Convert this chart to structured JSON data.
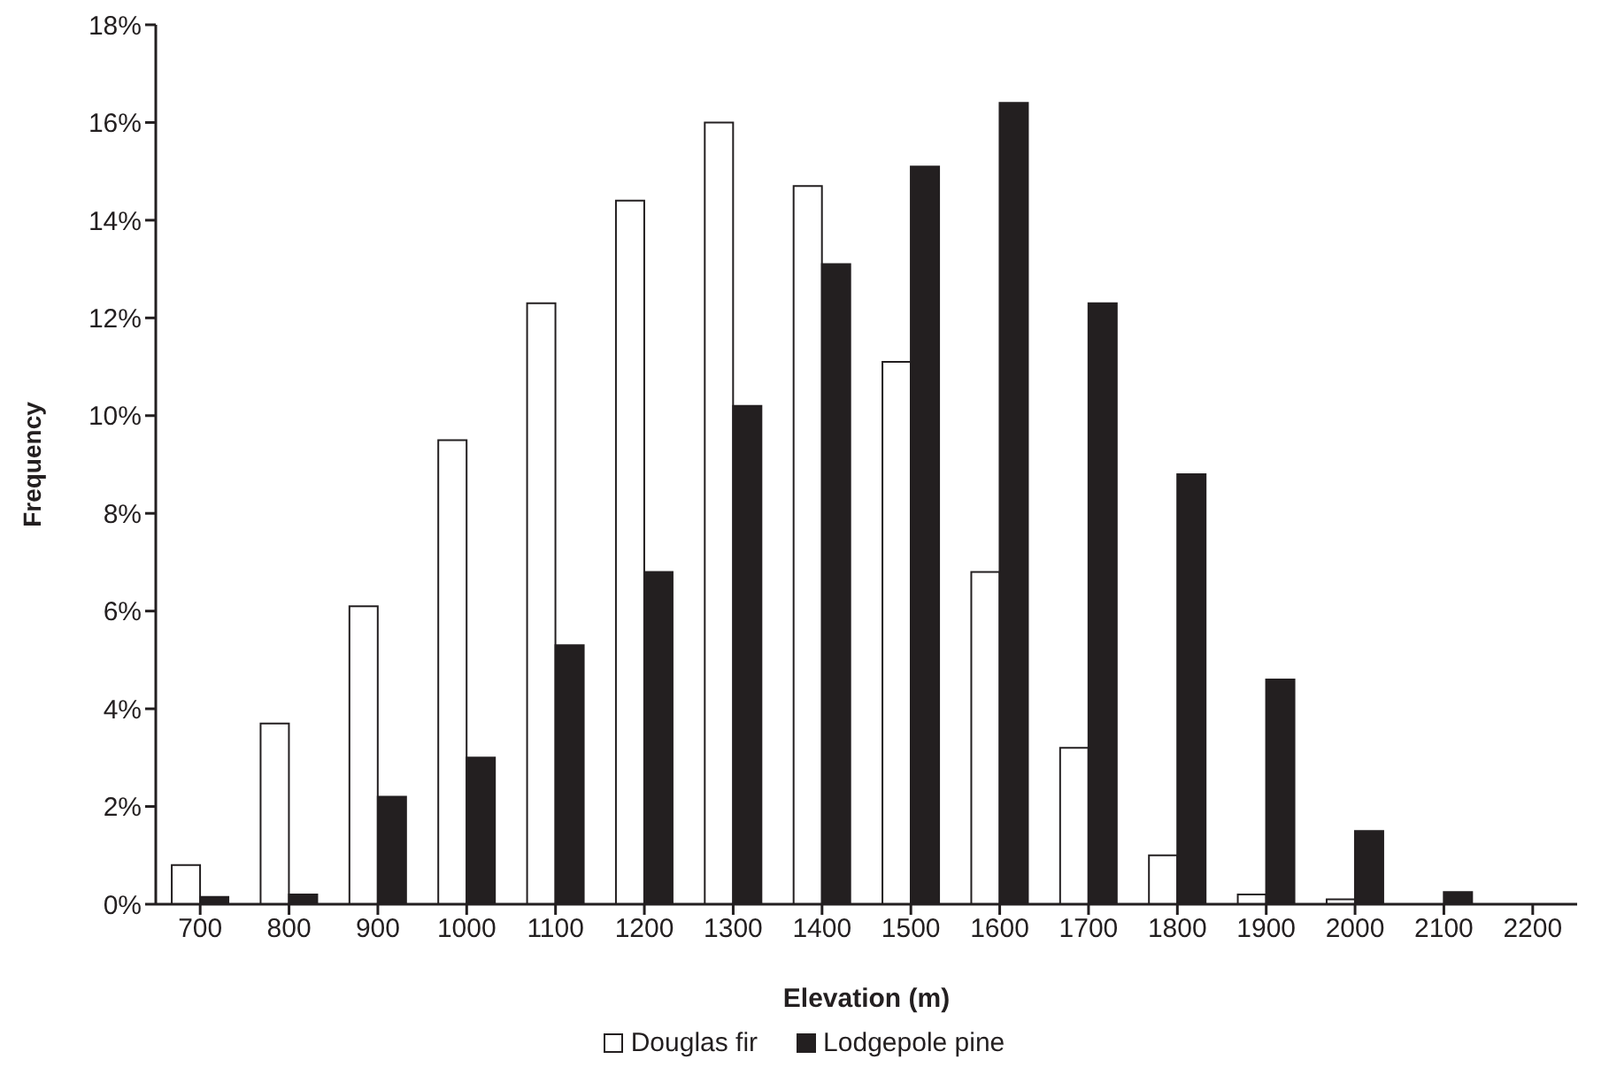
{
  "chart_data": {
    "type": "bar",
    "xlabel": "Elevation (m)",
    "ylabel": "Frequency",
    "categories": [
      "700",
      "800",
      "900",
      "1000",
      "1100",
      "1200",
      "1300",
      "1400",
      "1500",
      "1600",
      "1700",
      "1800",
      "1900",
      "2000",
      "2100",
      "2200"
    ],
    "series": [
      {
        "name": "Douglas fir",
        "color": "#ffffff",
        "values": [
          0.8,
          3.7,
          6.1,
          9.5,
          12.3,
          14.4,
          16.0,
          14.7,
          11.1,
          6.8,
          3.2,
          1.0,
          0.2,
          0.1,
          0,
          0
        ]
      },
      {
        "name": "Lodgepole pine",
        "color": "#231f20",
        "values": [
          0.15,
          0.2,
          2.2,
          3.0,
          5.3,
          6.8,
          10.2,
          13.1,
          15.1,
          16.4,
          12.3,
          8.8,
          4.6,
          1.5,
          0.25,
          0
        ]
      }
    ],
    "ylim": [
      0,
      18
    ],
    "yticks": [
      {
        "value": 0,
        "label": "0%"
      },
      {
        "value": 2,
        "label": "2%"
      },
      {
        "value": 4,
        "label": "4%"
      },
      {
        "value": 6,
        "label": "6%"
      },
      {
        "value": 8,
        "label": "8%"
      },
      {
        "value": 10,
        "label": "10%"
      },
      {
        "value": 12,
        "label": "12%"
      },
      {
        "value": 14,
        "label": "14%"
      },
      {
        "value": 16,
        "label": "16%"
      },
      {
        "value": 18,
        "label": "18%"
      }
    ],
    "grid": false,
    "legend": "bottom"
  }
}
